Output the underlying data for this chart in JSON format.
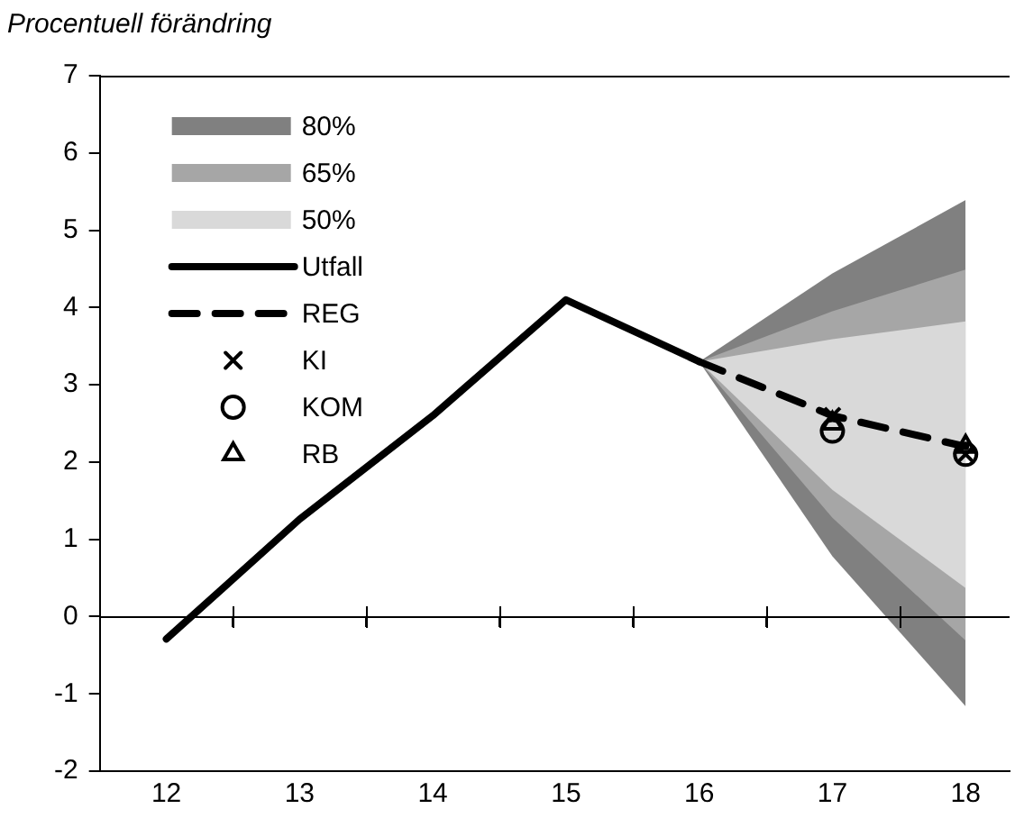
{
  "chart_data": {
    "type": "line",
    "ylabel": "Procentuell förändring",
    "xlim": [
      11.5,
      18.33
    ],
    "xticks": [
      12,
      {
        "value": 12.5,
        "label": null
      },
      13,
      {
        "value": 13.5,
        "label": null
      },
      14,
      {
        "value": 14.5,
        "label": null
      },
      15,
      {
        "value": 15.5,
        "label": null
      },
      16,
      {
        "value": 16.5,
        "label": null
      },
      17,
      {
        "value": 17.5,
        "label": null
      },
      18
    ],
    "ylim": [
      -2,
      7
    ],
    "yticks": [
      -2,
      -1,
      0,
      1,
      2,
      3,
      4,
      5,
      6,
      7
    ],
    "grid": false,
    "legend": "top left",
    "ref_lines": [
      {
        "axis": "y",
        "value": 0
      }
    ],
    "series": [
      {
        "name": "80%",
        "type": "area",
        "color": "#808080",
        "x": [
          16,
          17,
          18
        ],
        "values": [
          null,
          null,
          null
        ],
        "lower": [
          3.3,
          0.78,
          -1.16
        ],
        "upper": [
          3.3,
          4.44,
          5.39
        ]
      },
      {
        "name": "65%",
        "type": "area",
        "color": "#a6a6a6",
        "x": [
          16,
          17,
          18
        ],
        "values": [
          null,
          null,
          null
        ],
        "lower": [
          3.3,
          1.28,
          -0.31
        ],
        "upper": [
          3.3,
          3.95,
          4.49
        ]
      },
      {
        "name": "50%",
        "type": "area",
        "color": "#d9d9d9",
        "x": [
          16,
          17,
          18
        ],
        "values": [
          null,
          null,
          null
        ],
        "lower": [
          3.3,
          1.64,
          0.37
        ],
        "upper": [
          3.3,
          3.59,
          3.82
        ]
      },
      {
        "name": "Utfall",
        "type": "line",
        "color": "#000000",
        "line_style": "solid",
        "marker": "none",
        "x": [
          12,
          13,
          14,
          15,
          16
        ],
        "values": [
          -0.29,
          1.26,
          2.6,
          4.1,
          3.3
        ]
      },
      {
        "name": "REG",
        "type": "line",
        "color": "#000000",
        "line_style": "dashed",
        "marker": "none",
        "x": [
          16,
          17,
          18
        ],
        "values": [
          3.3,
          2.6,
          2.2
        ]
      },
      {
        "name": "KI",
        "type": "scatter",
        "color": "#000000",
        "marker": "cross",
        "x": [
          17,
          18
        ],
        "values": [
          2.6,
          2.1
        ]
      },
      {
        "name": "KOM",
        "type": "scatter",
        "color": "#000000",
        "marker": "circle",
        "x": [
          17,
          18
        ],
        "values": [
          2.4,
          2.1
        ]
      },
      {
        "name": "RB",
        "type": "scatter",
        "color": "#000000",
        "marker": "triangle",
        "x": [
          17,
          18
        ],
        "values": [
          2.5,
          2.2
        ]
      }
    ]
  }
}
